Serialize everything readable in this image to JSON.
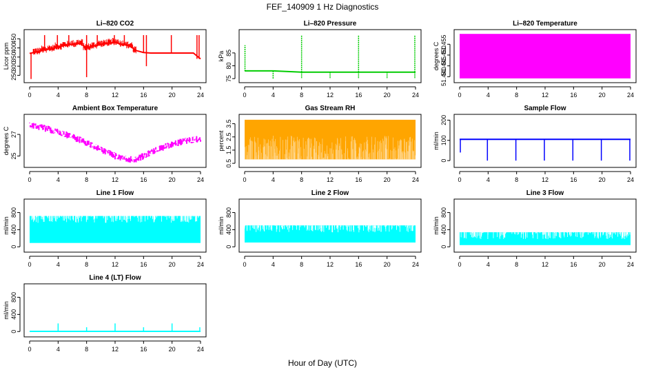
{
  "title": "FEF_140909  1 Hz Diagnostics",
  "xlabel": "Hour of Day (UTC)",
  "chart_data": [
    {
      "type": "line",
      "title": "Li–820 CO2",
      "ylabel": "Licor ppm",
      "color": "#ff0000",
      "x_ticks": [
        "0",
        "4",
        "8",
        "12",
        "16",
        "20",
        "24"
      ],
      "xlim": [
        0,
        24
      ],
      "ylim": [
        225,
        485
      ],
      "y_ticks": [
        "250",
        "300",
        "350",
        "400",
        "450"
      ],
      "series": [
        {
          "x": [
            0,
            1,
            2,
            3,
            4,
            5,
            6,
            7,
            8,
            9,
            10,
            11,
            12,
            13,
            14,
            15,
            16,
            17,
            18,
            19,
            20,
            21,
            22,
            23,
            24
          ],
          "values": [
            370,
            378,
            388,
            395,
            405,
            415,
            420,
            425,
            402,
            410,
            420,
            425,
            430,
            420,
            412,
            385,
            375,
            372,
            372,
            372,
            372,
            372,
            372,
            372,
            340
          ]
        }
      ],
      "spikes": [
        {
          "x": 0.2,
          "y": 230
        },
        {
          "x": 2.1,
          "y": 470
        },
        {
          "x": 3.9,
          "y": 470
        },
        {
          "x": 5.5,
          "y": 470
        },
        {
          "x": 8.0,
          "y": 470
        },
        {
          "x": 8.0,
          "y": 240
        },
        {
          "x": 9.5,
          "y": 470
        },
        {
          "x": 11.9,
          "y": 470
        },
        {
          "x": 13.3,
          "y": 470
        },
        {
          "x": 16.0,
          "y": 470
        },
        {
          "x": 16.4,
          "y": 470
        },
        {
          "x": 16.4,
          "y": 300
        },
        {
          "x": 19.9,
          "y": 470
        },
        {
          "x": 23.5,
          "y": 470
        },
        {
          "x": 23.8,
          "y": 470
        }
      ]
    },
    {
      "type": "line",
      "title": "Li–820 Pressure",
      "ylabel": "kPa",
      "color": "#00cc00",
      "x_ticks": [
        "0",
        "4",
        "8",
        "12",
        "16",
        "20",
        "24"
      ],
      "xlim": [
        0,
        24
      ],
      "ylim": [
        74.5,
        93
      ],
      "y_ticks": [
        "75",
        "80",
        "85"
      ],
      "series": [
        {
          "x": [
            0,
            4,
            8,
            12,
            16,
            20,
            24
          ],
          "values": [
            78,
            78,
            77.5,
            77.5,
            77.5,
            77.5,
            77.5
          ]
        }
      ],
      "spikes": [
        {
          "x": 0.05,
          "y": 88
        },
        {
          "x": 4.0,
          "y": 75
        },
        {
          "x": 8.0,
          "y": 92
        },
        {
          "x": 8.0,
          "y": 75
        },
        {
          "x": 12.0,
          "y": 75
        },
        {
          "x": 16.0,
          "y": 92
        },
        {
          "x": 16.0,
          "y": 75
        },
        {
          "x": 20.0,
          "y": 75
        },
        {
          "x": 23.9,
          "y": 92
        },
        {
          "x": 23.9,
          "y": 75
        }
      ]
    },
    {
      "type": "area",
      "title": "Li–820 Temperature",
      "ylabel": "degrees C",
      "color": "#ff00ff",
      "x_ticks": [
        "0",
        "4",
        "8",
        "12",
        "16",
        "20",
        "24"
      ],
      "xlim": [
        0,
        24
      ],
      "ylim": [
        51.4385,
        51.4605
      ],
      "y_ticks": [
        "51.440",
        "51.445",
        "51.450",
        "51.455"
      ],
      "series": [
        {
          "x": [
            0,
            24
          ],
          "low": [
            51.4392,
            51.4392
          ],
          "high": [
            51.4598,
            51.4598
          ]
        }
      ]
    },
    {
      "type": "line",
      "title": "Ambient Box Temperature",
      "ylabel": "degrees C",
      "color": "#ff00ff",
      "x_ticks": [
        "0",
        "4",
        "8",
        "12",
        "16",
        "20",
        "24"
      ],
      "xlim": [
        0,
        24
      ],
      "ylim": [
        24.2,
        28.6
      ],
      "y_ticks": [
        "25",
        "27"
      ],
      "series": [
        {
          "x": [
            0,
            2,
            4,
            6,
            8,
            10,
            12,
            14,
            15,
            16,
            18,
            20,
            22,
            24
          ],
          "values": [
            27.8,
            27.6,
            27.2,
            26.8,
            26.2,
            25.6,
            25.0,
            24.7,
            24.7,
            25.0,
            25.6,
            26.1,
            26.4,
            26.6
          ]
        }
      ],
      "band": 0.35
    },
    {
      "type": "area",
      "title": "Gas Stream RH",
      "ylabel": "percent",
      "color": "#ffa500",
      "x_ticks": [
        "0",
        "4",
        "8",
        "12",
        "16",
        "20",
        "24"
      ],
      "xlim": [
        0,
        24
      ],
      "ylim": [
        0.4,
        4.0
      ],
      "y_ticks": [
        "0.5",
        "1.5",
        "2.5",
        "3.5"
      ],
      "series": [
        {
          "x": [
            0,
            24
          ],
          "low": [
            0.8,
            0.8
          ],
          "high": [
            3.8,
            3.8
          ]
        }
      ]
    },
    {
      "type": "line",
      "title": "Sample Flow",
      "ylabel": "ml/min",
      "color": "#0000ff",
      "x_ticks": [
        "0",
        "4",
        "8",
        "12",
        "16",
        "20",
        "24"
      ],
      "xlim": [
        0,
        24
      ],
      "ylim": [
        -20,
        215
      ],
      "y_ticks": [
        "0",
        "100",
        "200"
      ],
      "series": [
        {
          "x": [
            0,
            24
          ],
          "values": [
            105,
            105
          ]
        }
      ],
      "spikes": [
        {
          "x": 0.1,
          "y": 40
        },
        {
          "x": 3.9,
          "y": 0
        },
        {
          "x": 7.9,
          "y": 0
        },
        {
          "x": 11.9,
          "y": 0
        },
        {
          "x": 15.9,
          "y": 0
        },
        {
          "x": 19.9,
          "y": 0
        },
        {
          "x": 23.9,
          "y": 0
        }
      ]
    },
    {
      "type": "area",
      "title": "Line 1 Flow",
      "ylabel": "ml/min",
      "color": "#00ffff",
      "x_ticks": [
        "0",
        "4",
        "8",
        "12",
        "16",
        "20",
        "24"
      ],
      "xlim": [
        0,
        24
      ],
      "ylim": [
        -60,
        1050
      ],
      "y_ticks": [
        "0",
        "400",
        "800"
      ],
      "series": [
        {
          "x": [
            0,
            24
          ],
          "low": [
            90,
            90
          ],
          "high": [
            720,
            720
          ]
        }
      ]
    },
    {
      "type": "area",
      "title": "Line 2 Flow",
      "ylabel": "ml/min",
      "color": "#00ffff",
      "x_ticks": [
        "0",
        "4",
        "8",
        "12",
        "16",
        "20",
        "24"
      ],
      "xlim": [
        0,
        24
      ],
      "ylim": [
        -60,
        1050
      ],
      "y_ticks": [
        "0",
        "400",
        "800"
      ],
      "series": [
        {
          "x": [
            0,
            24
          ],
          "low": [
            100,
            100
          ],
          "high": [
            500,
            500
          ]
        }
      ]
    },
    {
      "type": "area",
      "title": "Line 3 Flow",
      "ylabel": "ml/min",
      "color": "#00ffff",
      "x_ticks": [
        "0",
        "4",
        "8",
        "12",
        "16",
        "20",
        "24"
      ],
      "xlim": [
        0,
        24
      ],
      "ylim": [
        -60,
        1050
      ],
      "y_ticks": [
        "0",
        "400",
        "800"
      ],
      "series": [
        {
          "x": [
            0,
            24
          ],
          "low": [
            40,
            40
          ],
          "high": [
            340,
            340
          ]
        }
      ]
    },
    {
      "type": "line",
      "title": "Line 4 (LT) Flow",
      "ylabel": "ml/min",
      "color": "#00ffff",
      "x_ticks": [
        "0",
        "4",
        "8",
        "12",
        "16",
        "20",
        "24"
      ],
      "xlim": [
        0,
        24
      ],
      "ylim": [
        -60,
        1050
      ],
      "y_ticks": [
        "0",
        "400",
        "800"
      ],
      "series": [
        {
          "x": [
            0,
            24
          ],
          "values": [
            5,
            5
          ]
        }
      ],
      "spikes": [
        {
          "x": 4.0,
          "y": 190
        },
        {
          "x": 8.0,
          "y": 100
        },
        {
          "x": 12.0,
          "y": 190
        },
        {
          "x": 16.0,
          "y": 100
        },
        {
          "x": 20.0,
          "y": 190
        },
        {
          "x": 23.9,
          "y": 100
        }
      ]
    }
  ]
}
